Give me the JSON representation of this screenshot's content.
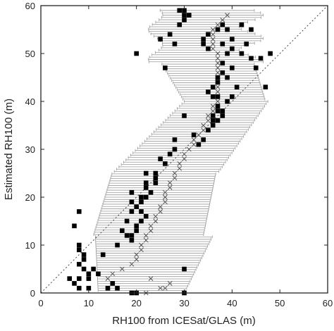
{
  "chart_data": {
    "type": "scatter",
    "xlabel": "RH100 from ICESat/GLAS (m)",
    "ylabel": "Estimated RH100 (m)",
    "xlim": [
      0,
      60
    ],
    "ylim": [
      0,
      60
    ],
    "xticks": [
      "0",
      "10",
      "20",
      "30",
      "40",
      "50",
      "60"
    ],
    "yticks": [
      "0",
      "10",
      "20",
      "30",
      "40",
      "50",
      "60"
    ],
    "grid": false,
    "reference_line": {
      "style": "dotted",
      "from": [
        0,
        0
      ],
      "to": [
        60,
        60
      ]
    },
    "series": [
      {
        "marker": "filled-square",
        "color": "#000000",
        "points": [
          [
            8,
            17
          ],
          [
            7,
            14
          ],
          [
            8,
            10
          ],
          [
            8,
            9
          ],
          [
            9,
            8
          ],
          [
            9,
            7
          ],
          [
            8,
            6
          ],
          [
            9,
            5
          ],
          [
            10,
            4
          ],
          [
            11,
            5
          ],
          [
            12,
            4
          ],
          [
            8,
            3
          ],
          [
            10,
            3
          ],
          [
            7,
            2
          ],
          [
            8,
            1
          ],
          [
            6,
            3
          ],
          [
            10,
            1
          ],
          [
            14,
            1
          ],
          [
            15,
            2
          ],
          [
            16,
            1
          ],
          [
            19,
            0
          ],
          [
            20,
            0
          ],
          [
            30,
            0
          ],
          [
            30,
            5
          ],
          [
            13,
            8
          ],
          [
            16,
            10
          ],
          [
            18,
            12
          ],
          [
            17,
            13
          ],
          [
            18,
            15
          ],
          [
            19,
            17
          ],
          [
            19,
            19
          ],
          [
            19,
            21
          ],
          [
            21,
            20
          ],
          [
            22,
            22
          ],
          [
            22,
            23
          ],
          [
            22,
            25
          ],
          [
            24,
            25
          ],
          [
            25,
            28
          ],
          [
            28,
            32
          ],
          [
            32,
            33
          ],
          [
            33,
            31
          ],
          [
            34,
            32
          ],
          [
            35,
            34
          ],
          [
            36,
            35
          ],
          [
            36,
            36
          ],
          [
            36,
            37
          ],
          [
            37,
            38
          ],
          [
            37,
            39
          ],
          [
            38,
            38
          ],
          [
            36,
            41
          ],
          [
            39,
            40
          ],
          [
            40,
            41
          ],
          [
            41,
            43
          ],
          [
            37,
            45
          ],
          [
            38,
            46
          ],
          [
            39,
            45
          ],
          [
            40,
            47
          ],
          [
            38,
            48
          ],
          [
            39,
            50
          ],
          [
            40,
            51
          ],
          [
            38,
            52
          ],
          [
            40,
            53
          ],
          [
            42,
            50
          ],
          [
            43,
            52
          ],
          [
            44,
            49
          ],
          [
            46,
            49
          ],
          [
            45,
            47
          ],
          [
            47,
            43
          ],
          [
            48,
            50
          ],
          [
            44,
            55
          ],
          [
            42,
            56
          ],
          [
            38,
            56
          ],
          [
            39,
            55
          ],
          [
            37,
            55
          ],
          [
            35,
            54
          ],
          [
            34,
            52
          ],
          [
            35,
            51
          ],
          [
            34,
            53
          ],
          [
            29,
            56
          ],
          [
            30,
            57
          ],
          [
            31,
            58
          ],
          [
            30,
            58
          ],
          [
            20,
            50
          ],
          [
            26,
            47
          ],
          [
            25,
            53
          ],
          [
            27,
            54
          ],
          [
            28,
            52
          ],
          [
            29,
            59
          ],
          [
            30,
            59
          ],
          [
            36,
            43
          ],
          [
            37,
            44
          ],
          [
            35,
            42
          ],
          [
            37,
            41
          ],
          [
            38,
            37
          ],
          [
            37,
            36
          ],
          [
            30,
            37
          ],
          [
            28,
            30
          ],
          [
            27,
            29
          ],
          [
            26,
            27
          ],
          [
            24,
            24
          ],
          [
            24,
            23
          ],
          [
            23,
            21
          ],
          [
            22,
            20
          ],
          [
            21,
            19
          ],
          [
            20,
            18
          ],
          [
            21,
            17
          ],
          [
            22,
            16
          ],
          [
            21,
            15
          ],
          [
            20,
            14
          ],
          [
            20,
            13
          ],
          [
            19,
            12
          ],
          [
            19,
            11
          ]
        ]
      },
      {
        "marker": "x",
        "color": "#555555",
        "points": [
          [
            14,
            3
          ],
          [
            15,
            4
          ],
          [
            17,
            5
          ],
          [
            19,
            6
          ],
          [
            20,
            7
          ],
          [
            20,
            8
          ],
          [
            21,
            9
          ],
          [
            21,
            10
          ],
          [
            22,
            11
          ],
          [
            22,
            12
          ],
          [
            23,
            13
          ],
          [
            23,
            14
          ],
          [
            24,
            15
          ],
          [
            24,
            16
          ],
          [
            25,
            17
          ],
          [
            25,
            18
          ],
          [
            26,
            19
          ],
          [
            26,
            20
          ],
          [
            26,
            21
          ],
          [
            27,
            22
          ],
          [
            27,
            23
          ],
          [
            28,
            24
          ],
          [
            28,
            25
          ],
          [
            29,
            26
          ],
          [
            29,
            27
          ],
          [
            30,
            28
          ],
          [
            30,
            29
          ],
          [
            31,
            30
          ],
          [
            32,
            31
          ],
          [
            32,
            32
          ],
          [
            33,
            33
          ],
          [
            34,
            34
          ],
          [
            34,
            35
          ],
          [
            35,
            36
          ],
          [
            35,
            37
          ],
          [
            36,
            38
          ],
          [
            36,
            39
          ],
          [
            37,
            40
          ],
          [
            37,
            41
          ],
          [
            37,
            42
          ],
          [
            37,
            43
          ],
          [
            37,
            44
          ],
          [
            37,
            45
          ],
          [
            37,
            46
          ],
          [
            37,
            47
          ],
          [
            37,
            48
          ],
          [
            37,
            49
          ],
          [
            37,
            50
          ],
          [
            36,
            51
          ],
          [
            36,
            52
          ],
          [
            36,
            53
          ],
          [
            36,
            54
          ],
          [
            36,
            55
          ],
          [
            37,
            56
          ],
          [
            38,
            57
          ],
          [
            39,
            58
          ],
          [
            22,
            0
          ],
          [
            25,
            1
          ],
          [
            26,
            1
          ],
          [
            27,
            2
          ],
          [
            23,
            3
          ]
        ]
      }
    ]
  }
}
